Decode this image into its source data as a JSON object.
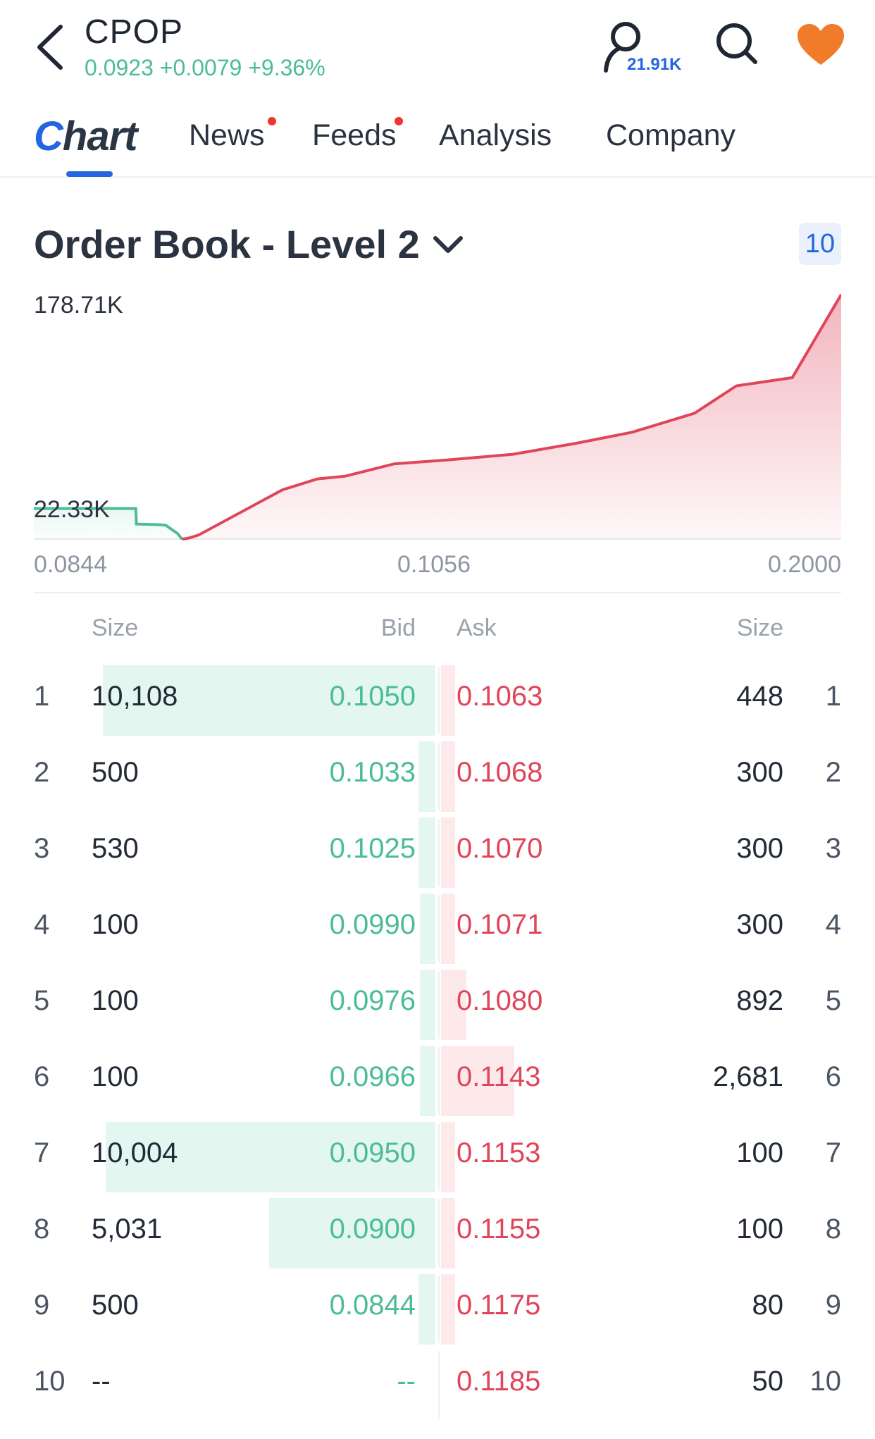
{
  "header": {
    "ticker": "CPOP",
    "quote": "0.0923 +0.0079 +9.36%",
    "follow_count": "21.91K",
    "icons": [
      "back-arrow-icon",
      "user-follow-icon",
      "search-icon",
      "heart-icon"
    ],
    "colors": {
      "up": "#4bbd94",
      "heart": "#f07c2a",
      "accent": "#2466e0"
    }
  },
  "tabs": [
    {
      "label": "Chart",
      "active": true
    },
    {
      "label": "News",
      "badge_dot": true
    },
    {
      "label": "Feeds",
      "badge_dot": true
    },
    {
      "label": "Analysis"
    },
    {
      "label": "Company"
    }
  ],
  "order_book": {
    "title": "Order Book - Level 2",
    "depth_levels": "10",
    "columns": {
      "bid_size": "Size",
      "bid": "Bid",
      "ask": "Ask",
      "ask_size": "Size"
    },
    "rows": [
      {
        "idx": "1",
        "bid_size": "10,108",
        "bid": "0.1050",
        "ask": "0.1063",
        "ask_size": "448",
        "bid_depth": 0.98,
        "ask_depth": 0.04
      },
      {
        "idx": "2",
        "bid_size": "500",
        "bid": "0.1033",
        "ask": "0.1068",
        "ask_size": "300",
        "bid_depth": 0.05,
        "ask_depth": 0.03
      },
      {
        "idx": "3",
        "bid_size": "530",
        "bid": "0.1025",
        "ask": "0.1070",
        "ask_size": "300",
        "bid_depth": 0.05,
        "ask_depth": 0.03
      },
      {
        "idx": "4",
        "bid_size": "100",
        "bid": "0.0990",
        "ask": "0.1071",
        "ask_size": "300",
        "bid_depth": 0.01,
        "ask_depth": 0.03
      },
      {
        "idx": "5",
        "bid_size": "100",
        "bid": "0.0976",
        "ask": "0.1080",
        "ask_size": "892",
        "bid_depth": 0.01,
        "ask_depth": 0.09
      },
      {
        "idx": "6",
        "bid_size": "100",
        "bid": "0.0966",
        "ask": "0.1143",
        "ask_size": "2,681",
        "bid_depth": 0.01,
        "ask_depth": 0.26
      },
      {
        "idx": "7",
        "bid_size": "10,004",
        "bid": "0.0950",
        "ask": "0.1153",
        "ask_size": "100",
        "bid_depth": 0.97,
        "ask_depth": 0.01
      },
      {
        "idx": "8",
        "bid_size": "5,031",
        "bid": "0.0900",
        "ask": "0.1155",
        "ask_size": "100",
        "bid_depth": 0.49,
        "ask_depth": 0.01
      },
      {
        "idx": "9",
        "bid_size": "500",
        "bid": "0.0844",
        "ask": "0.1175",
        "ask_size": "80",
        "bid_depth": 0.05,
        "ask_depth": 0.01
      },
      {
        "idx": "10",
        "bid_size": "--",
        "bid": "--",
        "ask": "0.1185",
        "ask_size": "50",
        "bid_depth": 0.0,
        "ask_depth": 0.0
      }
    ]
  },
  "chart_data": {
    "type": "area",
    "title": "",
    "y_labels": [
      "178.71K",
      "22.33K"
    ],
    "x_labels": [
      "0.0844",
      "0.1056",
      "0.2000"
    ],
    "ylim": [
      0,
      178710
    ],
    "xlim": [
      0.0844,
      0.2
    ],
    "series": [
      {
        "color": "#4bbd94",
        "x": [
          0.0844,
          0.09,
          0.095,
          0.0966,
          0.0976,
          0.099,
          0.0991,
          0.1025,
          0.1033,
          0.105,
          0.1056
        ],
        "y": [
          22330,
          22330,
          22330,
          22330,
          22330,
          22330,
          11000,
          10500,
          10108,
          4000,
          0
        ]
      },
      {
        "color": "#e0455a",
        "x": [
          0.1056,
          0.1063,
          0.1068,
          0.108,
          0.12,
          0.125,
          0.129,
          0.136,
          0.144,
          0.153,
          0.162,
          0.17,
          0.179,
          0.185,
          0.193,
          0.2
        ],
        "y": [
          0,
          448,
          1100,
          3000,
          36000,
          44000,
          46000,
          55000,
          58000,
          62000,
          70000,
          78000,
          92000,
          112000,
          118000,
          178710
        ]
      }
    ]
  }
}
